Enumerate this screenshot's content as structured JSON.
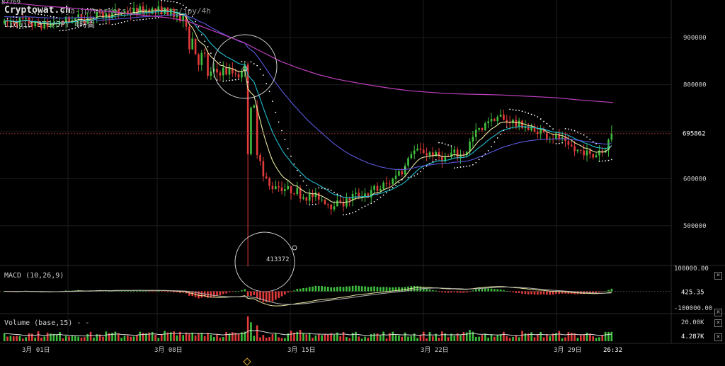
{
  "header": {
    "site": "Cryptowat.ch",
    "path": "/ja-jp/markets/liquid/btc/jpy/4h",
    "symbol": "Liquid BTC/JPY 4時間",
    "prev_label": "87769"
  },
  "panels": {
    "macd_label": "MACD (10,26,9)",
    "volume_label": "Volume (base,15)  -  -"
  },
  "price_axis": {
    "ticks": [
      "900000",
      "800000",
      "600000",
      "500000"
    ],
    "current": "695862",
    "low_annotation": "413372"
  },
  "macd_axis": {
    "top": "100000.00",
    "current": "425.35",
    "bottom": "-100000.00"
  },
  "volume_axis": {
    "top": "20.00K",
    "current": "4.287K"
  },
  "time_axis": {
    "labels": [
      "3月 01日",
      "3月 08日",
      "3月 15日",
      "3月 22日",
      "3月 29日"
    ],
    "countdown": "26:32"
  },
  "colors": {
    "up": "#3fbf3f",
    "down": "#e23b3b",
    "ma_fast": "#e8e8a0",
    "ma_mid": "#22bcd0",
    "ma_slow": "#5a5adf",
    "ma_long": "#c040c0",
    "psar": "#ffffff"
  },
  "chart_data": {
    "type": "candlestick",
    "exchange": "Liquid",
    "pair": "BTC/JPY",
    "interval": "4時間",
    "ylim": [
      420000,
      980000
    ],
    "x": [
      "2020-02-27",
      "2020-02-28",
      "2020-02-29",
      "2020-03-01",
      "2020-03-02",
      "2020-03-03",
      "2020-03-04",
      "2020-03-05",
      "2020-03-06",
      "2020-03-07",
      "2020-03-08",
      "2020-03-09",
      "2020-03-10",
      "2020-03-11",
      "2020-03-12",
      "2020-03-13",
      "2020-03-14",
      "2020-03-15",
      "2020-03-16",
      "2020-03-17",
      "2020-03-18",
      "2020-03-19",
      "2020-03-20",
      "2020-03-21",
      "2020-03-22",
      "2020-03-23",
      "2020-03-24",
      "2020-03-25",
      "2020-03-26",
      "2020-03-27",
      "2020-03-28",
      "2020-03-29",
      "2020-03-30",
      "2020-03-31"
    ],
    "close": [
      930000,
      935000,
      925000,
      930000,
      940000,
      945000,
      950000,
      955000,
      960000,
      955000,
      930000,
      820000,
      830000,
      820000,
      600000,
      580000,
      570000,
      560000,
      545000,
      560000,
      570000,
      590000,
      660000,
      655000,
      640000,
      660000,
      720000,
      730000,
      715000,
      700000,
      690000,
      660000,
      650000,
      695862
    ],
    "ma_long": [
      975000,
      972000,
      968000,
      965000,
      962000,
      958000,
      955000,
      950000,
      946000,
      942000,
      935000,
      920000,
      905000,
      890000,
      870000,
      850000,
      835000,
      822000,
      812000,
      805000,
      798000,
      792000,
      787000,
      784000,
      781000,
      780000,
      779000,
      778000,
      776000,
      774000,
      772000,
      768000,
      765000,
      762000
    ],
    "last_price": 695862,
    "low": 413372
  }
}
